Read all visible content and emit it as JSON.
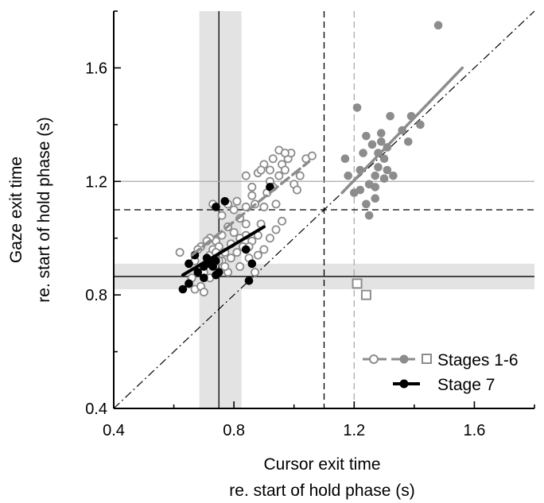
{
  "chart_data": {
    "type": "scatter",
    "title": "",
    "xlabel": [
      "Cursor exit time",
      "re. start of hold phase (s)"
    ],
    "ylabel": [
      "Gaze exit time",
      "re. start of hold phase (s)"
    ],
    "xlim": [
      0.4,
      1.8
    ],
    "ylim": [
      0.4,
      1.8
    ],
    "xticks": [
      {
        "v": 0.4,
        "label": "0.4"
      },
      {
        "v": 0.8,
        "label": "0.8"
      },
      {
        "v": 1.2,
        "label": "1.2"
      },
      {
        "v": 1.6,
        "label": "1.6"
      }
    ],
    "yticks": [
      {
        "v": 0.4,
        "label": "0.4"
      },
      {
        "v": 0.8,
        "label": "0.8"
      },
      {
        "v": 1.2,
        "label": "1.2"
      },
      {
        "v": 1.6,
        "label": "1.6"
      }
    ],
    "grid": false,
    "legend_position": "bottom-right",
    "legend": [
      {
        "label": "Stages 1-6",
        "style": "stages16"
      },
      {
        "label": "Stage 7",
        "style": "stage7"
      }
    ],
    "colors": {
      "gray": "#8c8c8c",
      "black": "#000000",
      "band": "#e3e3e3"
    },
    "bands": [
      {
        "orientation": "vertical",
        "from": 0.685,
        "to": 0.825
      },
      {
        "orientation": "horizontal",
        "from": 0.82,
        "to": 0.91
      }
    ],
    "reference_lines": [
      {
        "orientation": "vertical",
        "value": 0.75,
        "color": "#000000",
        "style": "solid"
      },
      {
        "orientation": "vertical",
        "value": 1.1,
        "color": "#000000",
        "style": "dashed"
      },
      {
        "orientation": "vertical",
        "value": 1.2,
        "color": "#aaaaaa",
        "style": "dashed"
      },
      {
        "orientation": "horizontal",
        "value": 0.865,
        "color": "#000000",
        "style": "solid"
      },
      {
        "orientation": "horizontal",
        "value": 1.1,
        "color": "#000000",
        "style": "dashed"
      },
      {
        "orientation": "horizontal",
        "value": 1.2,
        "color": "#aaaaaa",
        "style": "solid"
      }
    ],
    "identity_line": {
      "from": [
        0.4,
        0.4
      ],
      "to": [
        1.8,
        1.8
      ],
      "style": "dash-dot"
    },
    "series": [
      {
        "name": "Stages 1-6",
        "marker": "open-circle",
        "color": "#8c8c8c",
        "points": [
          [
            0.62,
            0.95
          ],
          [
            0.66,
            0.86
          ],
          [
            0.67,
            0.82
          ],
          [
            0.69,
            0.83
          ],
          [
            0.7,
            0.81
          ],
          [
            0.7,
            0.88
          ],
          [
            0.71,
            0.91
          ],
          [
            0.72,
            0.94
          ],
          [
            0.72,
            0.86
          ],
          [
            0.73,
            0.96
          ],
          [
            0.74,
            0.99
          ],
          [
            0.75,
            0.97
          ],
          [
            0.76,
            0.92
          ],
          [
            0.77,
            0.95
          ],
          [
            0.78,
            0.88
          ],
          [
            0.79,
            0.98
          ],
          [
            0.8,
            1.02
          ],
          [
            0.81,
            0.95
          ],
          [
            0.82,
            0.9
          ],
          [
            0.83,
            0.97
          ],
          [
            0.84,
            1.05
          ],
          [
            0.85,
            0.93
          ],
          [
            0.86,
            0.99
          ],
          [
            0.87,
            0.88
          ],
          [
            0.88,
            1.01
          ],
          [
            0.89,
            1.05
          ],
          [
            0.9,
            1.11
          ],
          [
            0.91,
            1.16
          ],
          [
            0.92,
            1.2
          ],
          [
            0.93,
            1.18
          ],
          [
            0.94,
            1.12
          ],
          [
            0.95,
            1.22
          ],
          [
            0.96,
            1.26
          ],
          [
            0.97,
            1.24
          ],
          [
            0.98,
            1.28
          ],
          [
            0.99,
            1.3
          ],
          [
            1.0,
            1.19
          ],
          [
            1.01,
            1.17
          ],
          [
            1.02,
            1.22
          ],
          [
            1.04,
            1.28
          ],
          [
            1.06,
            1.29
          ],
          [
            0.84,
            1.22
          ],
          [
            0.86,
            1.18
          ],
          [
            0.88,
            1.23
          ],
          [
            0.9,
            1.26
          ],
          [
            0.93,
            1.28
          ],
          [
            0.95,
            1.31
          ],
          [
            0.97,
            1.3
          ],
          [
            0.89,
            1.24
          ],
          [
            0.92,
            1.24
          ],
          [
            0.8,
            1.1
          ],
          [
            0.78,
            1.04
          ],
          [
            0.76,
            1.01
          ],
          [
            0.74,
            0.95
          ],
          [
            0.72,
            1.0
          ],
          [
            0.71,
            0.99
          ],
          [
            0.69,
            0.97
          ],
          [
            0.68,
            0.96
          ],
          [
            0.73,
            1.12
          ],
          [
            0.76,
            1.08
          ],
          [
            0.78,
            1.12
          ],
          [
            0.81,
            1.13
          ],
          [
            0.82,
            1.07
          ],
          [
            0.84,
            1.11
          ],
          [
            0.86,
            1.15
          ],
          [
            0.87,
            1.12
          ],
          [
            0.84,
            1.01
          ],
          [
            0.82,
            1.0
          ],
          [
            0.79,
            0.93
          ],
          [
            0.77,
            0.9
          ],
          [
            0.96,
            1.06
          ],
          [
            0.94,
            1.03
          ],
          [
            0.92,
            1.0
          ],
          [
            0.9,
            0.96
          ],
          [
            0.85,
            0.97
          ],
          [
            0.88,
            0.94
          ],
          [
            0.67,
            0.92
          ],
          [
            0.75,
            0.92
          ]
        ]
      },
      {
        "name": "Stages 1-6",
        "marker": "filled-circle",
        "color": "#8c8c8c",
        "points": [
          [
            1.17,
            1.28
          ],
          [
            1.18,
            1.22
          ],
          [
            1.2,
            1.16
          ],
          [
            1.21,
            1.46
          ],
          [
            1.22,
            1.24
          ],
          [
            1.23,
            1.3
          ],
          [
            1.24,
            1.36
          ],
          [
            1.25,
            1.19
          ],
          [
            1.25,
            1.08
          ],
          [
            1.26,
            1.33
          ],
          [
            1.27,
            1.22
          ],
          [
            1.27,
            1.18
          ],
          [
            1.28,
            1.3
          ],
          [
            1.28,
            1.25
          ],
          [
            1.29,
            1.34
          ],
          [
            1.29,
            1.37
          ],
          [
            1.3,
            1.28
          ],
          [
            1.3,
            1.21
          ],
          [
            1.31,
            1.32
          ],
          [
            1.31,
            1.24
          ],
          [
            1.32,
            1.43
          ],
          [
            1.33,
            1.22
          ],
          [
            1.36,
            1.38
          ],
          [
            1.38,
            1.34
          ],
          [
            1.39,
            1.43
          ],
          [
            1.42,
            1.4
          ],
          [
            1.48,
            1.75
          ],
          [
            1.24,
            1.12
          ],
          [
            1.27,
            1.14
          ],
          [
            1.22,
            1.17
          ]
        ]
      },
      {
        "name": "Stages 1-6",
        "marker": "open-square",
        "color": "#8c8c8c",
        "points": [
          [
            1.21,
            0.84
          ],
          [
            1.24,
            0.8
          ]
        ]
      },
      {
        "name": "Stage 7",
        "marker": "filled-circle",
        "color": "#000000",
        "points": [
          [
            0.63,
            0.82
          ],
          [
            0.65,
            0.84
          ],
          [
            0.65,
            0.91
          ],
          [
            0.67,
            0.94
          ],
          [
            0.68,
            0.88
          ],
          [
            0.7,
            0.86
          ],
          [
            0.71,
            0.93
          ],
          [
            0.72,
            0.91
          ],
          [
            0.73,
            0.9
          ],
          [
            0.74,
            0.92
          ],
          [
            0.74,
            0.87
          ],
          [
            0.75,
            0.88
          ],
          [
            0.74,
            1.11
          ],
          [
            0.77,
            1.13
          ],
          [
            0.84,
            0.96
          ],
          [
            0.85,
            0.85
          ],
          [
            0.86,
            0.91
          ],
          [
            0.92,
            1.18
          ],
          [
            0.7,
            0.9
          ]
        ]
      }
    ],
    "fit_lines": [
      {
        "series": "Stages 1-6",
        "from": [
          0.66,
          0.94
        ],
        "to": [
          1.05,
          1.27
        ],
        "color": "#8c8c8c",
        "style": "dashed"
      },
      {
        "series": "Stages 1-6",
        "from": [
          1.16,
          1.16
        ],
        "to": [
          1.56,
          1.6
        ],
        "color": "#8c8c8c",
        "style": "solid"
      },
      {
        "series": "Stage 7",
        "from": [
          0.63,
          0.87
        ],
        "to": [
          0.9,
          1.04
        ],
        "color": "#000000",
        "style": "solid"
      }
    ]
  }
}
